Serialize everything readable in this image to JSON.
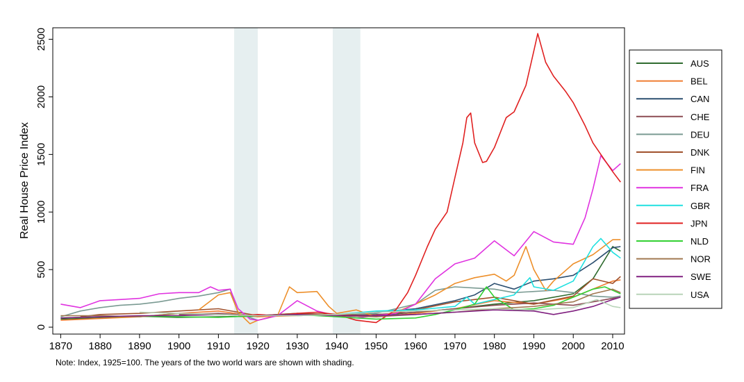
{
  "chart_data": {
    "type": "line",
    "title": "",
    "xlabel": "",
    "ylabel": "Real House Price Index",
    "xlim": [
      1868,
      2013
    ],
    "ylim": [
      -60,
      2600
    ],
    "xticks": [
      1870,
      1880,
      1890,
      1900,
      1910,
      1920,
      1930,
      1940,
      1950,
      1960,
      1970,
      1980,
      1990,
      2000,
      2010
    ],
    "yticks": [
      0,
      500,
      1000,
      1500,
      2000,
      2500
    ],
    "grid": false,
    "legend": "right",
    "shaded_periods": [
      [
        1914,
        1920
      ],
      [
        1939,
        1946
      ]
    ],
    "note": "Note: Index, 1925=100. The years of the two world wars are shown with shading.",
    "series": [
      {
        "name": "AUS",
        "color": "#2e6b2e",
        "x": [
          1870,
          1880,
          1890,
          1900,
          1910,
          1920,
          1930,
          1940,
          1950,
          1960,
          1970,
          1980,
          1990,
          2000,
          2005,
          2010,
          2012
        ],
        "y": [
          70,
          80,
          95,
          85,
          90,
          95,
          110,
          95,
          100,
          130,
          160,
          200,
          230,
          290,
          420,
          700,
          660
        ]
      },
      {
        "name": "BEL",
        "color": "#ef7d32",
        "x": [
          1870,
          1880,
          1890,
          1900,
          1910,
          1920,
          1930,
          1940,
          1950,
          1960,
          1970,
          1980,
          1990,
          2000,
          2005,
          2010,
          2012
        ],
        "y": [
          60,
          75,
          90,
          120,
          140,
          90,
          100,
          110,
          90,
          120,
          160,
          230,
          200,
          260,
          330,
          400,
          410
        ]
      },
      {
        "name": "CAN",
        "color": "#2c4f70",
        "x": [
          1920,
          1930,
          1940,
          1950,
          1960,
          1970,
          1975,
          1980,
          1985,
          1990,
          1995,
          2000,
          2005,
          2010,
          2012
        ],
        "y": [
          100,
          110,
          100,
          130,
          160,
          230,
          280,
          380,
          330,
          400,
          420,
          450,
          560,
          690,
          700
        ]
      },
      {
        "name": "CHE",
        "color": "#8b4a52",
        "x": [
          1900,
          1910,
          1920,
          1930,
          1940,
          1950,
          1960,
          1970,
          1980,
          1990,
          2000,
          2010,
          2012
        ],
        "y": [
          110,
          120,
          100,
          120,
          100,
          110,
          130,
          160,
          190,
          210,
          190,
          250,
          270
        ]
      },
      {
        "name": "DEU",
        "color": "#7a9a92",
        "x": [
          1870,
          1875,
          1880,
          1885,
          1890,
          1895,
          1900,
          1905,
          1910,
          1913,
          1915,
          1920,
          1925,
          1930,
          1940,
          1950,
          1960,
          1965,
          1970,
          1975,
          1980,
          1985,
          1990,
          1995,
          2000,
          2005,
          2010,
          2012
        ],
        "y": [
          90,
          140,
          170,
          190,
          200,
          220,
          250,
          270,
          300,
          330,
          120,
          60,
          100,
          110,
          100,
          120,
          200,
          320,
          350,
          340,
          330,
          300,
          310,
          320,
          300,
          270,
          260,
          270
        ]
      },
      {
        "name": "DNK",
        "color": "#a0512c",
        "x": [
          1875,
          1880,
          1890,
          1900,
          1910,
          1920,
          1930,
          1940,
          1950,
          1960,
          1970,
          1980,
          1990,
          2000,
          2005,
          2010,
          2012
        ],
        "y": [
          90,
          110,
          120,
          140,
          160,
          100,
          120,
          110,
          100,
          150,
          220,
          260,
          200,
          270,
          420,
          380,
          440
        ]
      },
      {
        "name": "FIN",
        "color": "#ed8f2a",
        "x": [
          1905,
          1910,
          1913,
          1915,
          1918,
          1920,
          1925,
          1928,
          1930,
          1935,
          1938,
          1940,
          1945,
          1950,
          1955,
          1960,
          1965,
          1970,
          1975,
          1980,
          1983,
          1985,
          1988,
          1990,
          1993,
          1995,
          2000,
          2005,
          2010,
          2012
        ],
        "y": [
          150,
          280,
          300,
          130,
          30,
          60,
          100,
          350,
          300,
          310,
          180,
          120,
          150,
          90,
          130,
          200,
          280,
          380,
          430,
          460,
          400,
          450,
          700,
          500,
          320,
          400,
          550,
          630,
          760,
          760
        ]
      },
      {
        "name": "FRA",
        "color": "#e032e0",
        "x": [
          1870,
          1875,
          1880,
          1885,
          1890,
          1895,
          1900,
          1905,
          1908,
          1910,
          1913,
          1915,
          1918,
          1920,
          1925,
          1930,
          1935,
          1940,
          1945,
          1950,
          1955,
          1960,
          1965,
          1970,
          1975,
          1980,
          1985,
          1990,
          1995,
          2000,
          2003,
          2005,
          2007,
          2010,
          2012
        ],
        "y": [
          200,
          170,
          230,
          240,
          250,
          290,
          300,
          300,
          350,
          320,
          330,
          160,
          70,
          60,
          100,
          230,
          140,
          100,
          80,
          100,
          120,
          200,
          420,
          550,
          600,
          750,
          620,
          830,
          740,
          720,
          950,
          1200,
          1490,
          1360,
          1420
        ]
      },
      {
        "name": "GBR",
        "color": "#1fe0e0",
        "x": [
          1930,
          1940,
          1950,
          1960,
          1970,
          1973,
          1975,
          1980,
          1985,
          1989,
          1990,
          1995,
          2000,
          2005,
          2007,
          2010,
          2012
        ],
        "y": [
          100,
          110,
          140,
          150,
          180,
          260,
          200,
          240,
          280,
          430,
          350,
          320,
          400,
          700,
          770,
          650,
          600
        ]
      },
      {
        "name": "JPN",
        "color": "#e02020",
        "x": [
          1915,
          1920,
          1925,
          1930,
          1935,
          1940,
          1945,
          1950,
          1955,
          1958,
          1960,
          1963,
          1965,
          1968,
          1970,
          1972,
          1973,
          1974,
          1975,
          1977,
          1978,
          1980,
          1983,
          1985,
          1988,
          1990,
          1991,
          1993,
          1995,
          1998,
          2000,
          2003,
          2005,
          2008,
          2010,
          2012
        ],
        "y": [
          100,
          110,
          100,
          120,
          130,
          110,
          60,
          40,
          150,
          300,
          450,
          700,
          850,
          1000,
          1300,
          1600,
          1820,
          1860,
          1600,
          1430,
          1440,
          1560,
          1820,
          1870,
          2100,
          2400,
          2550,
          2300,
          2180,
          2050,
          1950,
          1750,
          1600,
          1450,
          1350,
          1260
        ]
      },
      {
        "name": "NLD",
        "color": "#32d032",
        "x": [
          1870,
          1880,
          1890,
          1900,
          1910,
          1920,
          1930,
          1940,
          1950,
          1960,
          1965,
          1970,
          1975,
          1978,
          1980,
          1985,
          1990,
          1995,
          2000,
          2005,
          2008,
          2010,
          2012
        ],
        "y": [
          80,
          90,
          95,
          90,
          85,
          100,
          110,
          90,
          70,
          80,
          110,
          150,
          200,
          350,
          260,
          150,
          160,
          190,
          260,
          330,
          350,
          320,
          290
        ]
      },
      {
        "name": "NOR",
        "color": "#a07850",
        "x": [
          1870,
          1880,
          1890,
          1900,
          1910,
          1920,
          1930,
          1940,
          1950,
          1960,
          1970,
          1980,
          1990,
          2000,
          2005,
          2010,
          2012
        ],
        "y": [
          100,
          100,
          90,
          120,
          110,
          100,
          110,
          100,
          90,
          110,
          130,
          160,
          180,
          220,
          290,
          330,
          300
        ]
      },
      {
        "name": "SWE",
        "color": "#802080",
        "x": [
          1870,
          1880,
          1890,
          1900,
          1910,
          1920,
          1930,
          1940,
          1950,
          1960,
          1970,
          1980,
          1990,
          1995,
          2000,
          2005,
          2010,
          2012
        ],
        "y": [
          80,
          90,
          100,
          100,
          110,
          100,
          110,
          100,
          100,
          110,
          130,
          150,
          140,
          110,
          140,
          180,
          240,
          260
        ]
      },
      {
        "name": "USA",
        "color": "#b8d4b8",
        "x": [
          1890,
          1900,
          1910,
          1920,
          1930,
          1940,
          1950,
          1960,
          1970,
          1980,
          1990,
          2000,
          2006,
          2010,
          2012
        ],
        "y": [
          130,
          120,
          110,
          100,
          100,
          110,
          130,
          140,
          150,
          160,
          150,
          170,
          240,
          180,
          170
        ]
      }
    ]
  }
}
